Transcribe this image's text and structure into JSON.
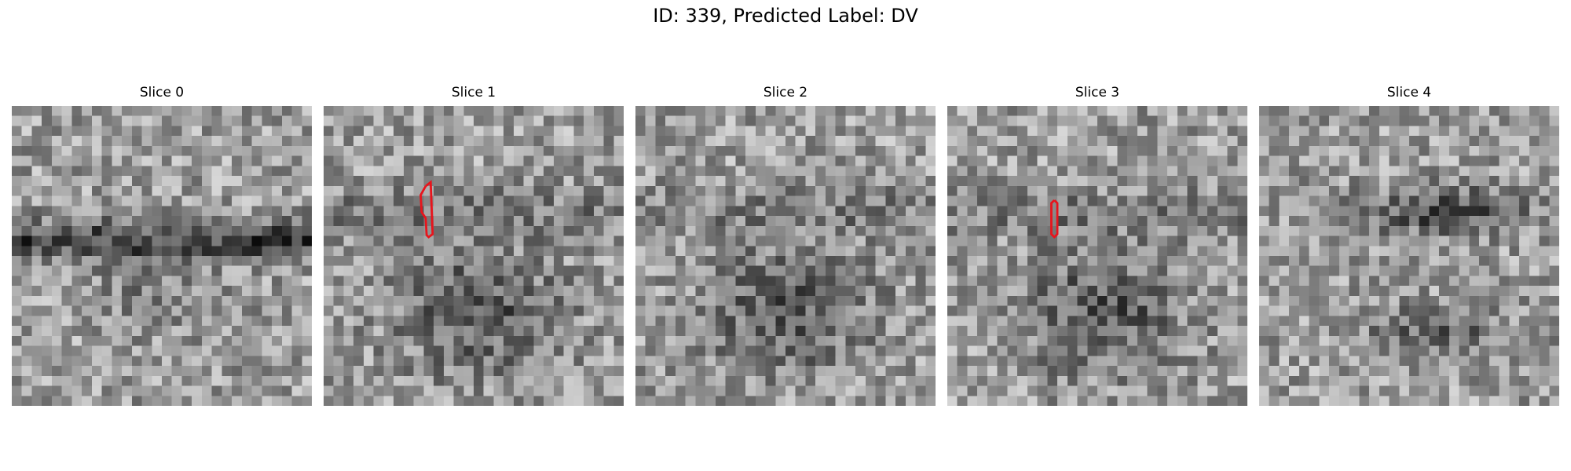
{
  "figure": {
    "title": "ID: 339, Predicted Label: DV"
  },
  "panels": [
    {
      "title": "Slice 0",
      "seed": 11,
      "kind": "band",
      "contour": null
    },
    {
      "title": "Slice 1",
      "seed": 23,
      "kind": "blob",
      "contour": [
        [
          10.2,
          8.1
        ],
        [
          10.7,
          7.7
        ],
        [
          10.9,
          12.9
        ],
        [
          10.5,
          13.2
        ],
        [
          10.3,
          13.0
        ],
        [
          10.2,
          11.3
        ],
        [
          9.8,
          10.7
        ],
        [
          9.7,
          9.0
        ],
        [
          10.2,
          8.1
        ]
      ]
    },
    {
      "title": "Slice 2",
      "seed": 37,
      "kind": "blob",
      "contour": null
    },
    {
      "title": "Slice 3",
      "seed": 41,
      "kind": "blob",
      "contour": [
        [
          10.7,
          9.5
        ],
        [
          11.0,
          9.8
        ],
        [
          11.0,
          12.9
        ],
        [
          10.7,
          13.2
        ],
        [
          10.4,
          12.9
        ],
        [
          10.4,
          9.8
        ],
        [
          10.7,
          9.5
        ]
      ]
    },
    {
      "title": "Slice 4",
      "seed": 53,
      "kind": "band2",
      "contour": null
    }
  ],
  "colors": {
    "contour": "#e8141c"
  }
}
